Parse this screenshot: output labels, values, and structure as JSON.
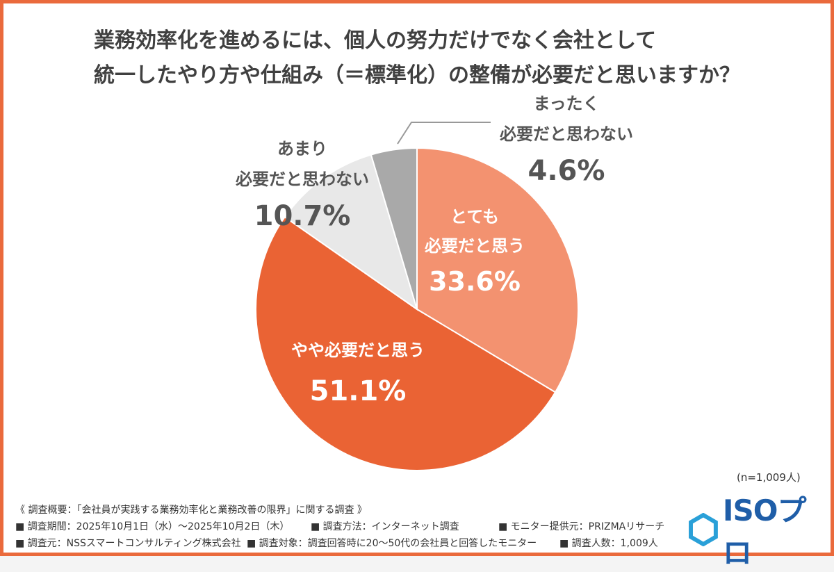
{
  "title": {
    "line1": "業務効率化を進めるには、個人の努力だけでなく会社として",
    "line2": "統一したやり方や仕組み（＝標準化）の整備が必要だと思いますか？"
  },
  "chart_data": {
    "type": "pie",
    "slices": [
      {
        "label_lines": [
          "とても",
          "必要だと思う"
        ],
        "value": 33.6,
        "value_label": "33.6%",
        "color": "#f39270"
      },
      {
        "label_lines": [
          "やや必要だと思う"
        ],
        "value": 51.1,
        "value_label": "51.1%",
        "color": "#ea6334"
      },
      {
        "label_lines": [
          "あまり",
          "必要だと思わない"
        ],
        "value": 10.7,
        "value_label": "10.7%",
        "color": "#e8e8e8"
      },
      {
        "label_lines": [
          "まったく",
          "必要だと思わない"
        ],
        "value": 4.6,
        "value_label": "4.6%",
        "color": "#a9a9a9"
      }
    ],
    "start": "top",
    "direction": "clockwise"
  },
  "sample_size": "(n=1,009人)",
  "footer": {
    "heading": "《 調査概要：「会社員が実践する業務効率化と業務改善の限界」に関する調査 》",
    "row1": [
      "■ 調査期間：2025年10月1日（水）〜2025年10月2日（木）",
      "■ 調査方法：インターネット調査",
      "■ モニター提供元：PRIZMAリサーチ"
    ],
    "row2": [
      "■ 調査元：NSSスマートコンサルティング株式会社",
      "■ 調査対象：調査回答時に20〜50代の会社員と回答したモニター",
      "■ 調査人数：1,009人"
    ]
  },
  "logo": {
    "text": "ISOプロ",
    "icon": "hexagon-logo-icon",
    "color": "#1f5ea8"
  }
}
